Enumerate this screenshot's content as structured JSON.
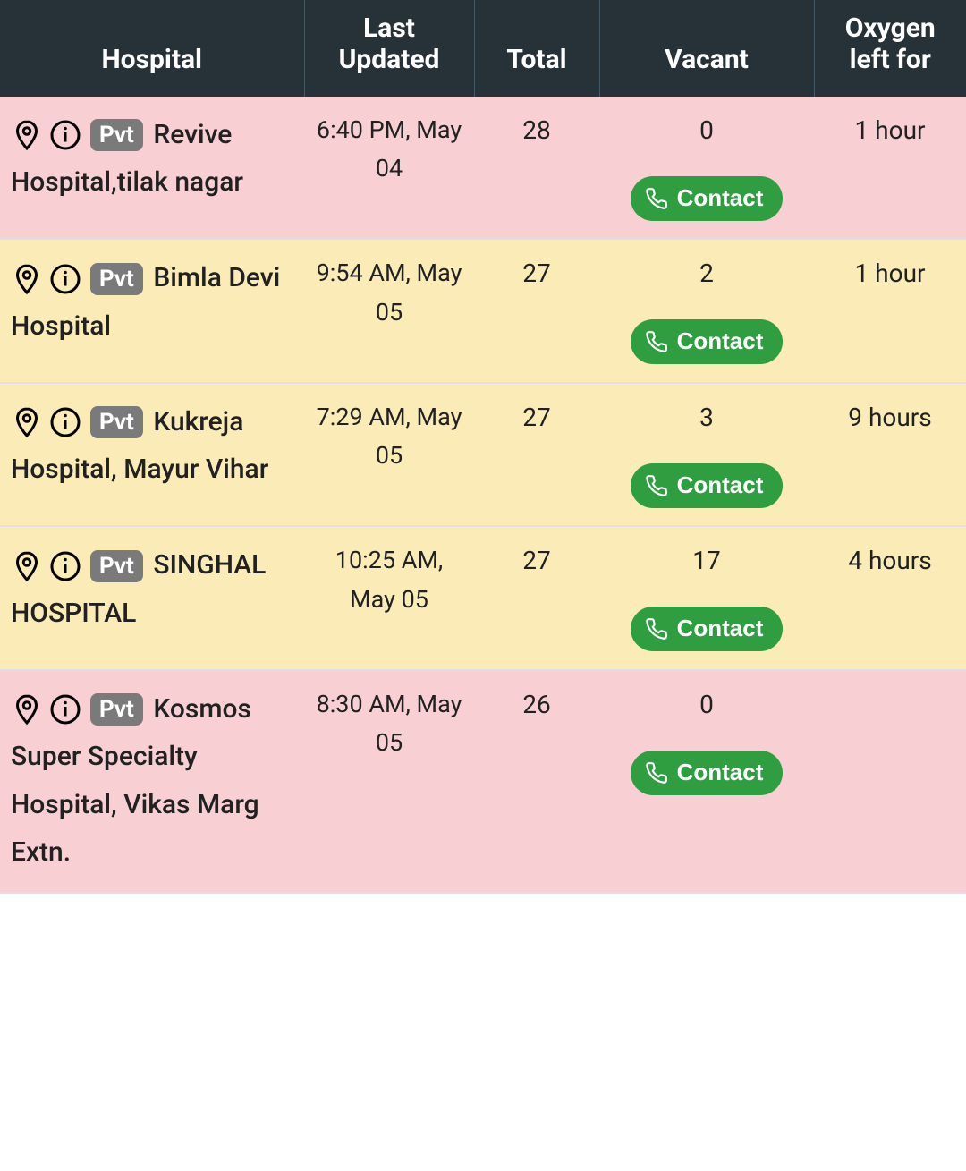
{
  "columns": [
    "Hospital",
    "Last Updated",
    "Total",
    "Vacant",
    "Oxygen left for"
  ],
  "badge_label": "Pvt",
  "contact_label": "Contact",
  "colors": {
    "header_bg": "#263238",
    "header_text": "#ffffff",
    "row_pink": "#f8d0d4",
    "row_yellow": "#fbecb7",
    "badge_bg": "#7a7a7a",
    "contact_bg": "#2e9e41"
  },
  "rows": [
    {
      "name": "Revive Hospital,tilak nagar",
      "type": "Pvt",
      "updated": "6:40 PM, May 04",
      "total": "28",
      "vacant": "0",
      "oxygen": "1 hour",
      "row_color": "pink"
    },
    {
      "name": "Bimla Devi Hospital",
      "type": "Pvt",
      "updated": "9:54 AM, May 05",
      "total": "27",
      "vacant": "2",
      "oxygen": "1 hour",
      "row_color": "yellow"
    },
    {
      "name": "Kukreja Hospital, Mayur Vihar",
      "type": "Pvt",
      "updated": "7:29 AM, May 05",
      "total": "27",
      "vacant": "3",
      "oxygen": "9 hours",
      "row_color": "yellow"
    },
    {
      "name": "SINGHAL HOSPITAL",
      "type": "Pvt",
      "updated": "10:25 AM, May 05",
      "total": "27",
      "vacant": "17",
      "oxygen": "4 hours",
      "row_color": "yellow"
    },
    {
      "name": "Kosmos Super Specialty Hospital, Vikas Marg Extn.",
      "type": "Pvt",
      "updated": "8:30 AM, May 05",
      "total": "26",
      "vacant": "0",
      "oxygen": "",
      "row_color": "pink"
    }
  ]
}
